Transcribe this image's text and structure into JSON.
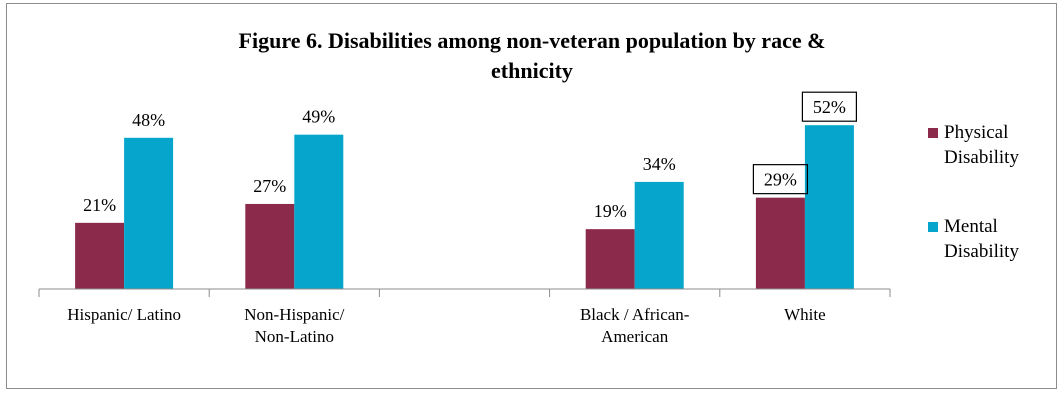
{
  "chart_data": {
    "type": "bar",
    "title_lines": [
      "Figure 6. Disabilities among non-veteran population by race &",
      "ethnicity"
    ],
    "categories": [
      [
        "Hispanic/ Latino"
      ],
      [
        "Non-Hispanic/",
        "Non-Latino"
      ],
      [
        ""
      ],
      [
        "Black / African-",
        "American"
      ],
      [
        "White"
      ]
    ],
    "series": [
      {
        "name": [
          "Physical",
          "Disability"
        ],
        "color": "#8b2a4b",
        "values": [
          21,
          27,
          null,
          19,
          29
        ],
        "labels": [
          "21%",
          "27%",
          "",
          "19%",
          "29%"
        ]
      },
      {
        "name": [
          "Mental",
          "Disability"
        ],
        "color": "#06a6cc",
        "values": [
          48,
          49,
          null,
          34,
          52
        ],
        "labels": [
          "48%",
          "49%",
          "",
          "34%",
          "52%"
        ]
      }
    ],
    "boxed_labels": [
      [
        0,
        4
      ],
      [
        1,
        4
      ]
    ],
    "ylim": [
      0,
      60
    ],
    "legend_position": "right",
    "grid": false
  }
}
